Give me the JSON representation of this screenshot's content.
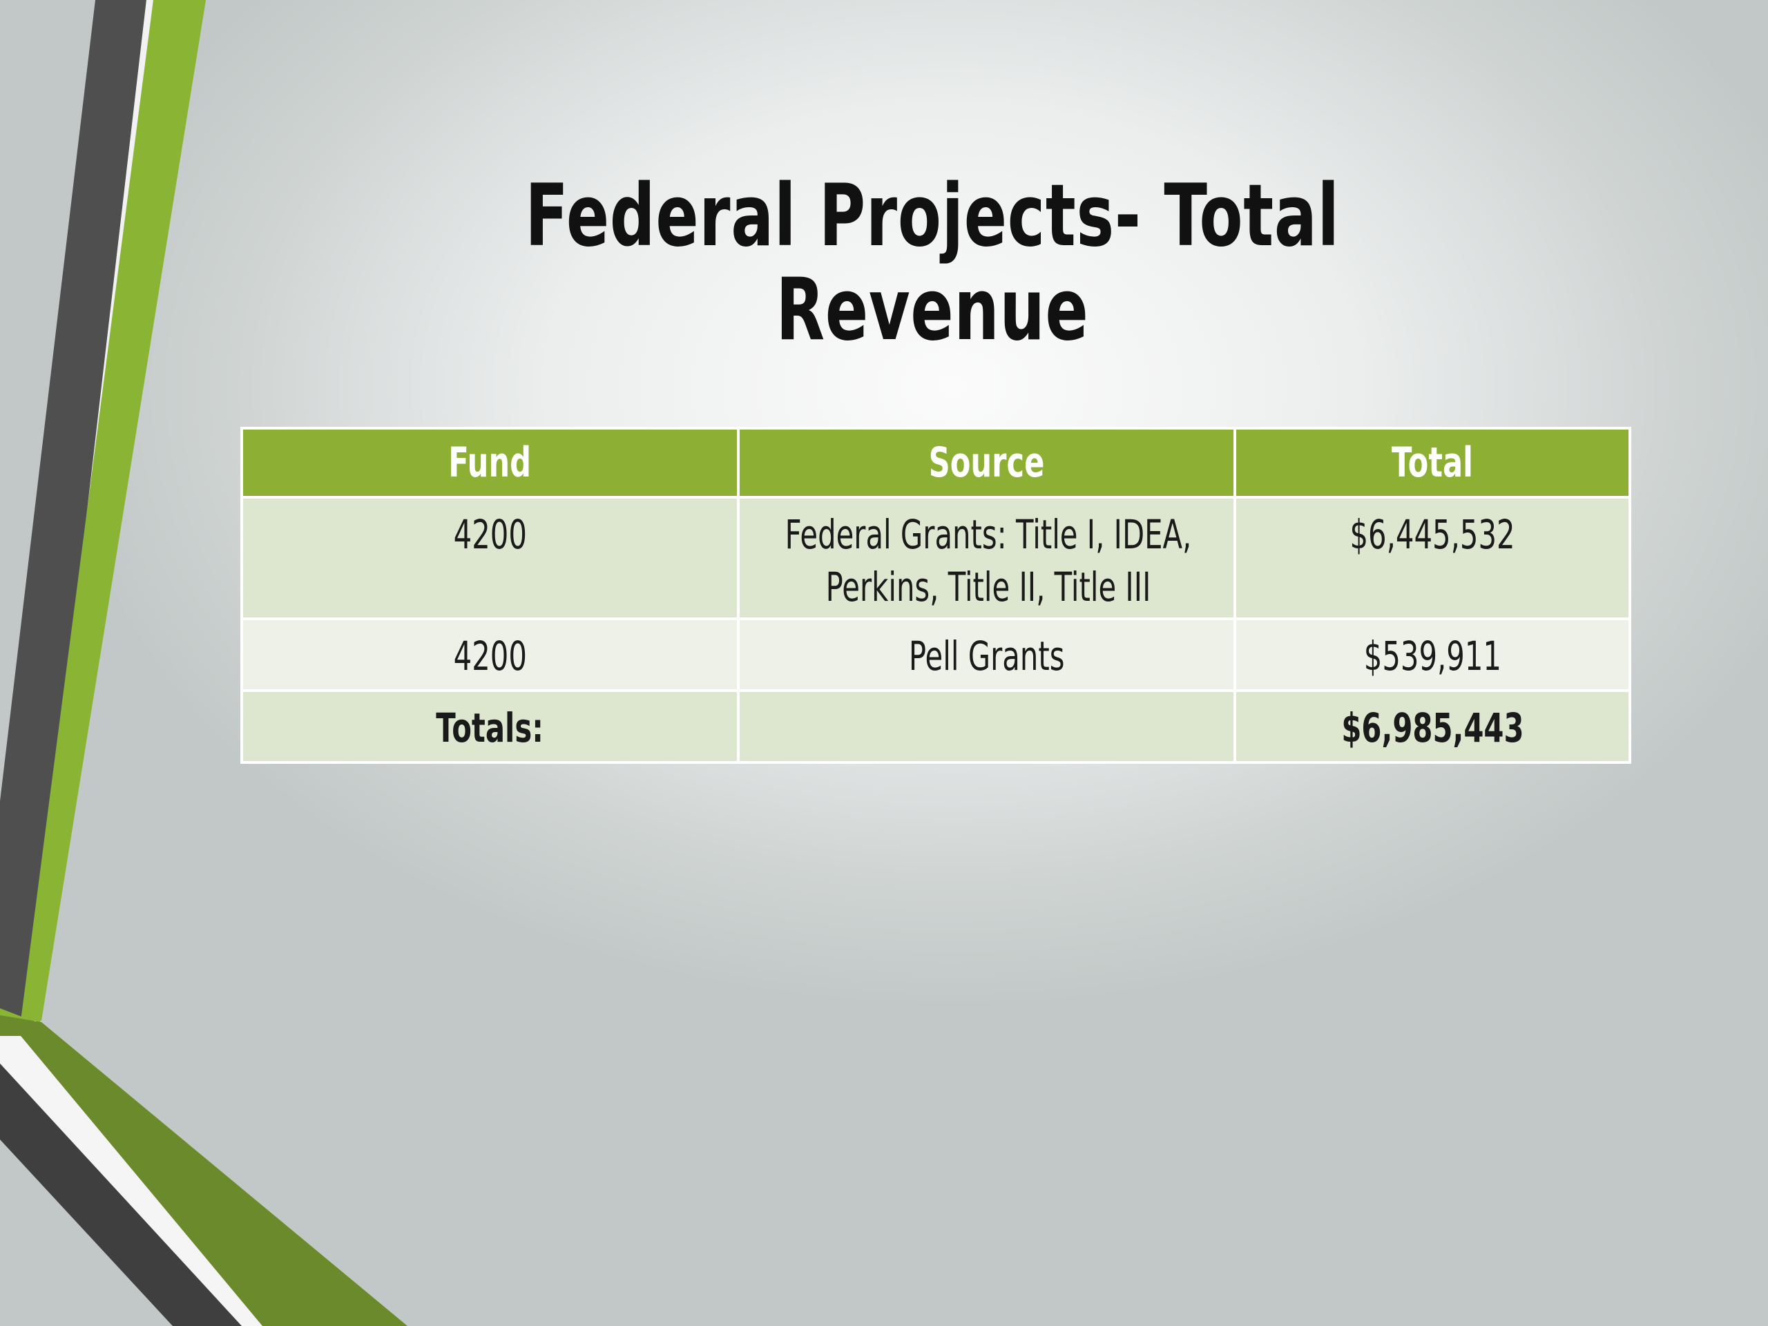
{
  "slide": {
    "title": "Federal Projects- Total Revenue"
  },
  "table": {
    "headers": [
      "Fund",
      "Source",
      "Total"
    ],
    "rows": [
      {
        "fund": "4200",
        "source": "Federal Grants:  Title I, IDEA, Perkins, Title II, Title III",
        "total": "$6,445,532"
      },
      {
        "fund": "4200",
        "source": "Pell Grants",
        "total": "$539,911"
      },
      {
        "fund": "Totals:",
        "source": "",
        "total": "$6,985,443"
      }
    ]
  },
  "colors": {
    "header_green": "#8db034",
    "row_light_green": "#dde7cf",
    "row_pale": "#edf1e8",
    "accent_green": "#8ab534",
    "accent_dark_green": "#6b8a2c",
    "accent_gray": "#4d4d4d"
  }
}
